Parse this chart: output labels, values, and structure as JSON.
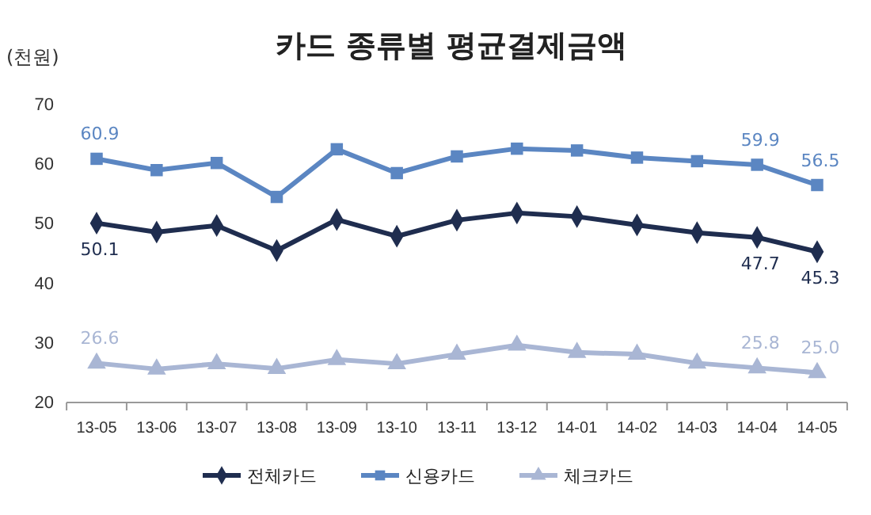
{
  "chart_data": {
    "type": "line",
    "title": "카드 종류별 평균결제금액",
    "ylabel": "(천원)",
    "categories": [
      "13-05",
      "13-06",
      "13-07",
      "13-08",
      "13-09",
      "13-10",
      "13-11",
      "13-12",
      "14-01",
      "14-02",
      "14-03",
      "14-04",
      "14-05"
    ],
    "ylim": [
      20,
      70
    ],
    "yticks": [
      20,
      30,
      40,
      50,
      60,
      70
    ],
    "grid": false,
    "legend": "bottom",
    "line_style": "solid",
    "series": [
      {
        "name": "전체카드",
        "color": "#1f2d4f",
        "marker": "diamond",
        "values": [
          50.1,
          48.6,
          49.7,
          45.5,
          50.7,
          47.9,
          50.6,
          51.8,
          51.2,
          49.8,
          48.5,
          47.7,
          45.3
        ],
        "value_labels": [
          "50.1",
          null,
          null,
          null,
          null,
          null,
          null,
          null,
          null,
          null,
          null,
          "47.7",
          "45.3"
        ]
      },
      {
        "name": "신용카드",
        "color": "#5b86c2",
        "marker": "square",
        "values": [
          60.9,
          59.0,
          60.2,
          54.5,
          62.5,
          58.5,
          61.3,
          62.6,
          62.3,
          61.1,
          60.5,
          59.9,
          56.5
        ],
        "value_labels": [
          "60.9",
          null,
          null,
          null,
          null,
          null,
          null,
          null,
          null,
          null,
          null,
          "59.9",
          "56.5"
        ]
      },
      {
        "name": "체크카드",
        "color": "#a9b6d4",
        "marker": "triangle",
        "values": [
          26.6,
          25.6,
          26.5,
          25.7,
          27.2,
          26.5,
          28.1,
          29.6,
          28.4,
          28.1,
          26.6,
          25.8,
          25.0
        ],
        "value_labels": [
          "26.6",
          null,
          null,
          null,
          null,
          null,
          null,
          null,
          null,
          null,
          null,
          "25.8",
          "25.0"
        ]
      }
    ]
  }
}
